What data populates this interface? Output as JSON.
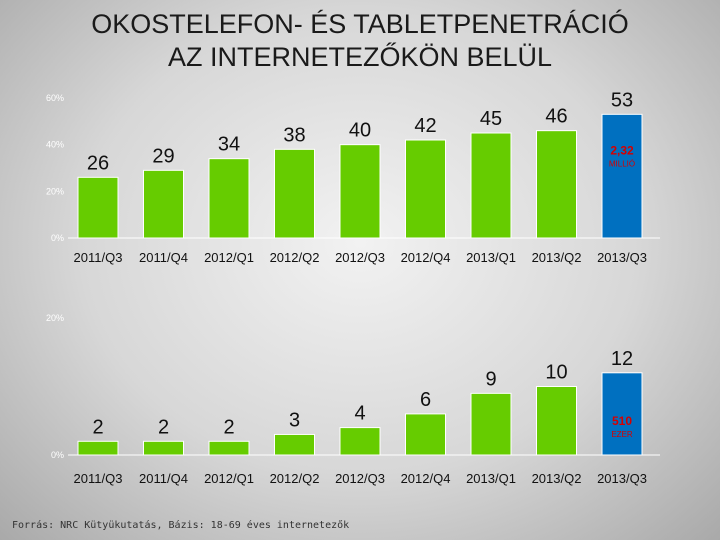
{
  "title": {
    "line1": "OKOSTELEFON- ÉS TABLETPENETRÁCIÓ",
    "line2": "AZ INTERNETEZŐKÖN BELÜL"
  },
  "source": "Forrás: NRC Kütyükutatás, Bázis: 18-69 éves internetezők",
  "colors": {
    "bar": "#66cc00",
    "highlight": "#0070c0",
    "highlight_text": "#d40000"
  },
  "chart_data": [
    {
      "type": "bar",
      "categories": [
        "2011/Q3",
        "2011/Q4",
        "2012/Q1",
        "2012/Q2",
        "2012/Q3",
        "2012/Q4",
        "2013/Q1",
        "2013/Q2",
        "2013/Q3"
      ],
      "values": [
        26,
        29,
        34,
        38,
        40,
        42,
        45,
        46,
        53
      ],
      "data_labels": [
        "26",
        "29",
        "34",
        "38",
        "40",
        "42",
        "45",
        "46",
        "53"
      ],
      "ylim": [
        0,
        60
      ],
      "yticks": [
        "0%",
        "20%",
        "40%",
        "60%"
      ],
      "grid": false,
      "highlight_index": 8,
      "annotation": {
        "value": "2,32",
        "unit": "MILLIÓ"
      }
    },
    {
      "type": "bar",
      "categories": [
        "2011/Q3",
        "2011/Q4",
        "2012/Q1",
        "2012/Q2",
        "2012/Q3",
        "2012/Q4",
        "2013/Q1",
        "2013/Q2",
        "2013/Q3"
      ],
      "values": [
        2,
        2,
        2,
        3,
        4,
        6,
        9,
        10,
        12
      ],
      "data_labels": [
        "2",
        "2",
        "2",
        "3",
        "4",
        "6",
        "9",
        "10",
        "12"
      ],
      "ylim": [
        0,
        20
      ],
      "yticks": [
        "0%",
        "20%"
      ],
      "grid": false,
      "highlight_index": 8,
      "annotation": {
        "value": "510",
        "unit": "EZER"
      }
    }
  ]
}
